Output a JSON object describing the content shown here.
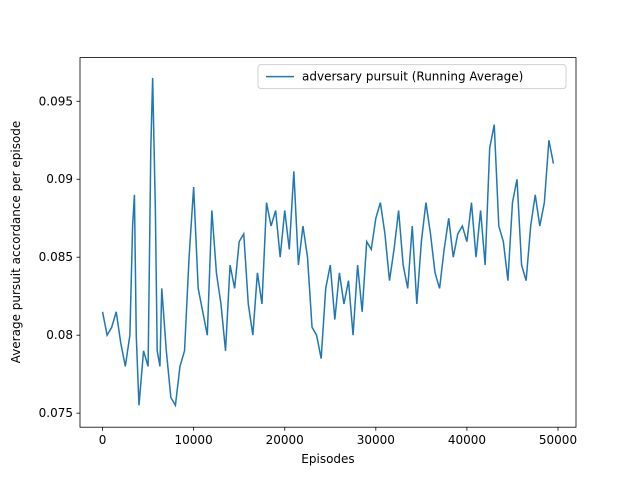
{
  "chart_data": {
    "type": "line",
    "xlabel": "Episodes",
    "ylabel": "Average pursuit accordance per episode",
    "legend": "upper right",
    "xlim": [
      -2475,
      51975
    ],
    "ylim": [
      0.0741,
      0.0978
    ],
    "xticks": [
      0,
      10000,
      20000,
      30000,
      40000,
      50000
    ],
    "yticks": [
      0.075,
      0.08,
      0.085,
      0.09,
      0.095
    ],
    "x": [
      0,
      500,
      1000,
      1500,
      2000,
      2500,
      3000,
      3300,
      3500,
      3700,
      4000,
      4500,
      5000,
      5300,
      5500,
      5800,
      6000,
      6300,
      6500,
      7000,
      7500,
      8000,
      8500,
      9000,
      9500,
      10000,
      10500,
      11000,
      11500,
      12000,
      12500,
      13000,
      13500,
      14000,
      14500,
      15000,
      15500,
      16000,
      16500,
      17000,
      17500,
      18000,
      18500,
      19000,
      19500,
      20000,
      20500,
      21000,
      21500,
      22000,
      22500,
      23000,
      23500,
      24000,
      24500,
      25000,
      25500,
      26000,
      26500,
      27000,
      27500,
      28000,
      28500,
      29000,
      29500,
      30000,
      30500,
      31000,
      31500,
      32000,
      32500,
      33000,
      33500,
      34000,
      34500,
      35000,
      35500,
      36000,
      36500,
      37000,
      37500,
      38000,
      38500,
      39000,
      39500,
      40000,
      40500,
      41000,
      41500,
      42000,
      42500,
      43000,
      43500,
      44000,
      44500,
      45000,
      45500,
      46000,
      46500,
      47000,
      47500,
      48000,
      48500,
      49000,
      49500
    ],
    "series": [
      {
        "name": "adversary pursuit (Running Average)",
        "color": "#1f77b4",
        "values": [
          0.0815,
          0.08,
          0.0805,
          0.0815,
          0.0795,
          0.078,
          0.08,
          0.087,
          0.089,
          0.08,
          0.0755,
          0.079,
          0.078,
          0.092,
          0.0965,
          0.088,
          0.079,
          0.078,
          0.083,
          0.079,
          0.076,
          0.0755,
          0.078,
          0.079,
          0.085,
          0.0895,
          0.083,
          0.0815,
          0.08,
          0.088,
          0.084,
          0.082,
          0.079,
          0.0845,
          0.083,
          0.086,
          0.0865,
          0.082,
          0.08,
          0.084,
          0.082,
          0.0885,
          0.087,
          0.088,
          0.085,
          0.088,
          0.0855,
          0.0905,
          0.0845,
          0.087,
          0.085,
          0.0805,
          0.08,
          0.0785,
          0.083,
          0.0845,
          0.081,
          0.084,
          0.082,
          0.0835,
          0.08,
          0.0845,
          0.0815,
          0.086,
          0.0855,
          0.0875,
          0.0885,
          0.0865,
          0.0835,
          0.0855,
          0.088,
          0.0845,
          0.083,
          0.087,
          0.082,
          0.086,
          0.0885,
          0.0865,
          0.084,
          0.083,
          0.0855,
          0.0875,
          0.085,
          0.0865,
          0.087,
          0.086,
          0.0885,
          0.085,
          0.088,
          0.0845,
          0.092,
          0.0935,
          0.087,
          0.086,
          0.0835,
          0.0885,
          0.09,
          0.0845,
          0.0835,
          0.087,
          0.089,
          0.087,
          0.0885,
          0.0925,
          0.091
        ]
      }
    ]
  }
}
